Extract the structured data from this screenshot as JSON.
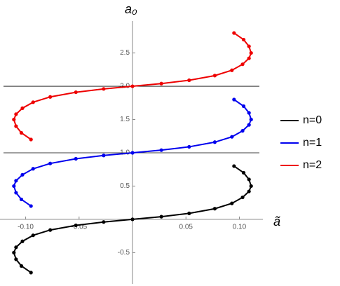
{
  "chart_data": {
    "type": "line",
    "xlabel": "ã",
    "ylabel": "a₀",
    "xlim": [
      -0.124,
      0.122
    ],
    "ylim": [
      -0.97,
      2.98
    ],
    "xticks": [
      {
        "value": -0.1,
        "label": "-0.10"
      },
      {
        "value": -0.05,
        "label": "-0.05"
      },
      {
        "value": 0.05,
        "label": "0.05"
      },
      {
        "value": 0.1,
        "label": "0.10"
      }
    ],
    "yticks": [
      -0.5,
      0.5,
      {
        "value": 1,
        "label": "1.0"
      },
      1.5,
      {
        "value": 2,
        "label": "2.0"
      },
      2.5
    ],
    "hlines": [
      1,
      2
    ],
    "legend": "right",
    "series": [
      {
        "name": "n=0",
        "color": "#000000",
        "x": [
          -0.095,
          -0.104,
          -0.109,
          -0.111,
          -0.109,
          -0.103,
          -0.093,
          -0.077,
          -0.053,
          -0.027,
          0,
          0.027,
          0.053,
          0.077,
          0.093,
          0.103,
          0.109,
          0.111,
          0.109,
          0.104,
          0.095
        ],
        "y": [
          -0.8,
          -0.7,
          -0.6,
          -0.5,
          -0.42,
          -0.33,
          -0.24,
          -0.16,
          -0.09,
          -0.04,
          0,
          0.04,
          0.09,
          0.16,
          0.24,
          0.33,
          0.42,
          0.5,
          0.6,
          0.7,
          0.8
        ]
      },
      {
        "name": "n=1",
        "color": "#0000ee",
        "x": [
          -0.095,
          -0.104,
          -0.109,
          -0.111,
          -0.109,
          -0.103,
          -0.093,
          -0.077,
          -0.053,
          -0.027,
          0,
          0.027,
          0.053,
          0.077,
          0.093,
          0.103,
          0.109,
          0.111,
          0.109,
          0.104,
          0.095
        ],
        "y": [
          0.2,
          0.3,
          0.4,
          0.5,
          0.58,
          0.67,
          0.76,
          0.84,
          0.91,
          0.96,
          1,
          1.04,
          1.09,
          1.16,
          1.24,
          1.33,
          1.42,
          1.5,
          1.6,
          1.7,
          1.8
        ]
      },
      {
        "name": "n=2",
        "color": "#ee0000",
        "x": [
          -0.095,
          -0.104,
          -0.109,
          -0.111,
          -0.109,
          -0.103,
          -0.093,
          -0.077,
          -0.053,
          -0.027,
          0,
          0.027,
          0.053,
          0.077,
          0.093,
          0.103,
          0.109,
          0.111,
          0.109,
          0.104,
          0.095
        ],
        "y": [
          1.2,
          1.3,
          1.4,
          1.5,
          1.58,
          1.67,
          1.76,
          1.84,
          1.91,
          1.96,
          2,
          2.04,
          2.09,
          2.16,
          2.24,
          2.33,
          2.42,
          2.5,
          2.6,
          2.7,
          2.8
        ]
      }
    ]
  }
}
